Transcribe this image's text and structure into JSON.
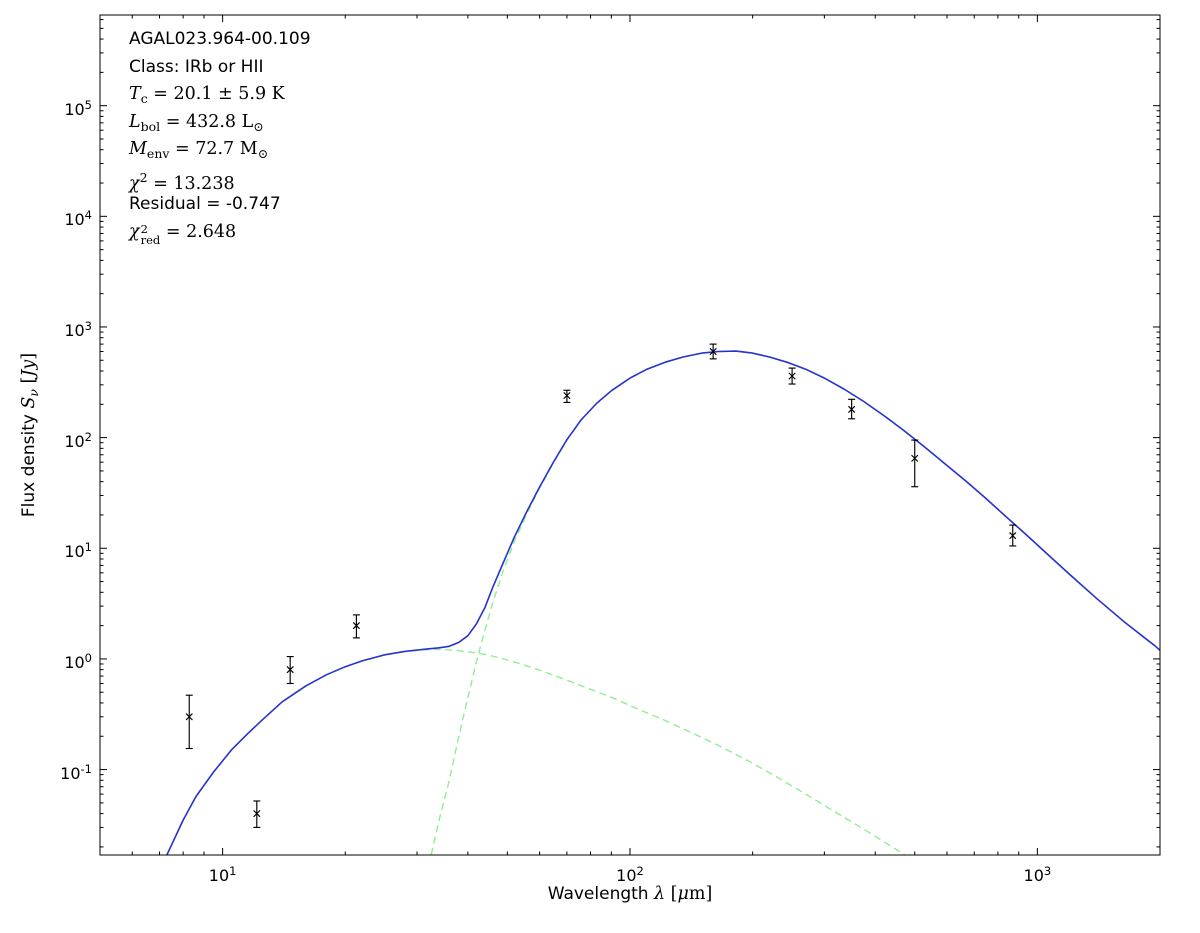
{
  "figure": {
    "background": "#ffffff",
    "frame_color": "#000000",
    "tick_color": "#000000",
    "annotation_lines": [
      {
        "tokens": [
          {
            "s": "plain",
            "t": "AGAL023.964-00.109"
          }
        ]
      },
      {
        "tokens": [
          {
            "s": "plain",
            "t": "Class: IRb or HII"
          }
        ]
      },
      {
        "tokens": [
          {
            "s": "var",
            "t": "T"
          },
          {
            "s": "sub",
            "t": "c"
          },
          {
            "s": "rm",
            "t": " = 20.1 ± 5.9 K"
          }
        ]
      },
      {
        "tokens": [
          {
            "s": "var",
            "t": "L"
          },
          {
            "s": "sub",
            "t": "bol"
          },
          {
            "s": "rm",
            "t": " = 432.8 L"
          },
          {
            "s": "sub",
            "t": "⊙"
          }
        ]
      },
      {
        "tokens": [
          {
            "s": "var",
            "t": "M"
          },
          {
            "s": "sub",
            "t": "env"
          },
          {
            "s": "rm",
            "t": " = 72.7 M"
          },
          {
            "s": "sub",
            "t": "⊙"
          }
        ]
      },
      {
        "tokens": [
          {
            "s": "var",
            "t": "χ"
          },
          {
            "s": "sup",
            "t": "2"
          },
          {
            "s": "rm",
            "t": " = 13.238"
          }
        ]
      },
      {
        "tokens": [
          {
            "s": "plain",
            "t": "Residual = -0.747"
          }
        ]
      },
      {
        "tokens": [
          {
            "s": "var",
            "t": "χ"
          },
          {
            "s": "stack",
            "sup": "2",
            "sub": "red"
          },
          {
            "s": "rm",
            "t": " = 2.648"
          }
        ]
      }
    ],
    "x_axis": {
      "label_tokens": [
        {
          "s": "plain",
          "t": "Wavelength "
        },
        {
          "s": "var",
          "t": "λ"
        },
        {
          "s": "rm",
          "t": " ["
        },
        {
          "s": "var",
          "t": "μ"
        },
        {
          "s": "rm",
          "t": "m]"
        }
      ],
      "tick_labels": [
        {
          "v": 10,
          "base": "10",
          "exp": "1"
        },
        {
          "v": 100,
          "base": "10",
          "exp": "2"
        },
        {
          "v": 1000,
          "base": "10",
          "exp": "3"
        }
      ]
    },
    "y_axis": {
      "label_tokens": [
        {
          "s": "plain",
          "t": "Flux density "
        },
        {
          "s": "var",
          "t": "S"
        },
        {
          "s": "subi",
          "t": "ν"
        },
        {
          "s": "rm",
          "t": " ["
        },
        {
          "s": "var",
          "t": "Jy"
        },
        {
          "s": "rm",
          "t": "]"
        }
      ],
      "tick_labels": [
        {
          "v": 100000,
          "base": "10",
          "exp": "5"
        },
        {
          "v": 10000,
          "base": "10",
          "exp": "4"
        },
        {
          "v": 1000,
          "base": "10",
          "exp": "3"
        },
        {
          "v": 100,
          "base": "10",
          "exp": "2"
        },
        {
          "v": 10,
          "base": "10",
          "exp": "1"
        },
        {
          "v": 1,
          "base": "10",
          "exp": "0"
        },
        {
          "v": 0.1,
          "base": "10",
          "exp": "-1"
        }
      ]
    }
  },
  "chart_data": {
    "type": "line",
    "title": "",
    "xlabel": "Wavelength λ [μm]",
    "ylabel": "Flux density S_ν [Jy]",
    "xscale": "log",
    "yscale": "log",
    "xlim": [
      5,
      2000
    ],
    "ylim": [
      0.0169,
      660000
    ],
    "grid": false,
    "legend": null,
    "annotations": [
      "AGAL023.964-00.109",
      "Class: IRb or HII",
      "T_c = 20.1 ± 5.9 K",
      "L_bol = 432.8 L⊙",
      "M_env = 72.7 M⊙",
      "χ² = 13.238",
      "Residual = -0.747",
      "χ²_red = 2.648"
    ],
    "series": [
      {
        "name": "warm-component",
        "color": "#90ee90",
        "style": "dashed",
        "width": 1.4,
        "points": [
          [
            7.3,
            0.017
          ],
          [
            8,
            0.035
          ],
          [
            8.6,
            0.057
          ],
          [
            9.5,
            0.095
          ],
          [
            10.5,
            0.15
          ],
          [
            11.5,
            0.21
          ],
          [
            12.5,
            0.28
          ],
          [
            14,
            0.41
          ],
          [
            16,
            0.57
          ],
          [
            18,
            0.72
          ],
          [
            20,
            0.85
          ],
          [
            22,
            0.96
          ],
          [
            25,
            1.09
          ],
          [
            28,
            1.17
          ],
          [
            31,
            1.21
          ],
          [
            34,
            1.22
          ],
          [
            37,
            1.2
          ],
          [
            40,
            1.16
          ],
          [
            44,
            1.1
          ],
          [
            48,
            1.02
          ],
          [
            53,
            0.92
          ],
          [
            60,
            0.79
          ],
          [
            68,
            0.67
          ],
          [
            78,
            0.55
          ],
          [
            90,
            0.45
          ],
          [
            105,
            0.35
          ],
          [
            120,
            0.285
          ],
          [
            140,
            0.22
          ],
          [
            165,
            0.165
          ],
          [
            195,
            0.12
          ],
          [
            230,
            0.085
          ],
          [
            270,
            0.06
          ],
          [
            320,
            0.041
          ],
          [
            380,
            0.028
          ],
          [
            450,
            0.019
          ],
          [
            520,
            0.0135
          ]
        ]
      },
      {
        "name": "cold-component",
        "color": "#90ee90",
        "style": "dashed",
        "width": 1.4,
        "points": [
          [
            32.5,
            0.017
          ],
          [
            34,
            0.035
          ],
          [
            36,
            0.08
          ],
          [
            38,
            0.2
          ],
          [
            40,
            0.45
          ],
          [
            42,
            0.95
          ],
          [
            44,
            1.8
          ],
          [
            46,
            3.2
          ],
          [
            49,
            6.5
          ],
          [
            52,
            11.5
          ],
          [
            56,
            21
          ],
          [
            60,
            35
          ],
          [
            65,
            60
          ],
          [
            70,
            95
          ],
          [
            76,
            145
          ],
          [
            83,
            205
          ],
          [
            90,
            265
          ],
          [
            100,
            345
          ],
          [
            110,
            415
          ],
          [
            122,
            480
          ],
          [
            135,
            535
          ],
          [
            150,
            580
          ],
          [
            165,
            600
          ],
          [
            182,
            605
          ],
          [
            200,
            580
          ],
          [
            220,
            535
          ],
          [
            245,
            475
          ],
          [
            270,
            415
          ],
          [
            300,
            345
          ],
          [
            335,
            275
          ],
          [
            375,
            212
          ],
          [
            420,
            158
          ],
          [
            470,
            116
          ],
          [
            525,
            84
          ],
          [
            590,
            59
          ],
          [
            665,
            41
          ],
          [
            745,
            28.5
          ],
          [
            835,
            19.5
          ],
          [
            940,
            13.2
          ],
          [
            1060,
            8.8
          ],
          [
            1200,
            5.8
          ],
          [
            1400,
            3.5
          ],
          [
            1650,
            2.1
          ],
          [
            1950,
            1.3
          ],
          [
            2050,
            1.1
          ]
        ]
      },
      {
        "name": "model-total",
        "color": "#2633cf",
        "style": "solid",
        "width": 1.6,
        "points": [
          [
            7.3,
            0.017
          ],
          [
            8,
            0.035
          ],
          [
            8.6,
            0.057
          ],
          [
            9.5,
            0.095
          ],
          [
            10.5,
            0.15
          ],
          [
            11.5,
            0.21
          ],
          [
            12.5,
            0.28
          ],
          [
            14,
            0.41
          ],
          [
            16,
            0.57
          ],
          [
            18,
            0.72
          ],
          [
            20,
            0.85
          ],
          [
            22,
            0.96
          ],
          [
            25,
            1.09
          ],
          [
            28,
            1.17
          ],
          [
            31,
            1.22
          ],
          [
            34,
            1.26
          ],
          [
            36,
            1.3
          ],
          [
            38,
            1.41
          ],
          [
            40,
            1.62
          ],
          [
            42,
            2.08
          ],
          [
            44,
            2.9
          ],
          [
            46,
            4.4
          ],
          [
            49,
            7.6
          ],
          [
            52,
            12.6
          ],
          [
            56,
            22
          ],
          [
            60,
            35.8
          ],
          [
            65,
            60.9
          ],
          [
            70,
            95.8
          ],
          [
            76,
            145.7
          ],
          [
            83,
            205.6
          ],
          [
            90,
            265.5
          ],
          [
            100,
            345.4
          ],
          [
            110,
            415.3
          ],
          [
            122,
            480.3
          ],
          [
            135,
            535.2
          ],
          [
            150,
            580.2
          ],
          [
            165,
            600.2
          ],
          [
            182,
            605.1
          ],
          [
            200,
            580.1
          ],
          [
            220,
            535.1
          ],
          [
            245,
            475.1
          ],
          [
            270,
            415.1
          ],
          [
            300,
            345
          ],
          [
            335,
            275
          ],
          [
            375,
            212
          ],
          [
            420,
            158
          ],
          [
            470,
            116
          ],
          [
            525,
            84
          ],
          [
            590,
            59
          ],
          [
            665,
            41
          ],
          [
            745,
            28.5
          ],
          [
            835,
            19.5
          ],
          [
            940,
            13.2
          ],
          [
            1060,
            8.8
          ],
          [
            1200,
            5.8
          ],
          [
            1400,
            3.5
          ],
          [
            1650,
            2.1
          ],
          [
            1950,
            1.3
          ],
          [
            2050,
            1.1
          ]
        ]
      }
    ],
    "data_points": {
      "marker": "x",
      "color": "#000000",
      "points": [
        {
          "x": 8.28,
          "y": 0.3,
          "ylo": 0.155,
          "yhi": 0.47
        },
        {
          "x": 12.13,
          "y": 0.04,
          "ylo": 0.03,
          "yhi": 0.052
        },
        {
          "x": 14.65,
          "y": 0.8,
          "ylo": 0.6,
          "yhi": 1.05
        },
        {
          "x": 21.3,
          "y": 2.0,
          "ylo": 1.55,
          "yhi": 2.5
        },
        {
          "x": 70,
          "y": 240,
          "ylo": 208,
          "yhi": 268
        },
        {
          "x": 160,
          "y": 600,
          "ylo": 515,
          "yhi": 700
        },
        {
          "x": 250,
          "y": 360,
          "ylo": 305,
          "yhi": 425
        },
        {
          "x": 350,
          "y": 180,
          "ylo": 148,
          "yhi": 222
        },
        {
          "x": 500,
          "y": 65,
          "ylo": 36,
          "yhi": 95
        },
        {
          "x": 870,
          "y": 13,
          "ylo": 10.5,
          "yhi": 16.2
        }
      ]
    }
  }
}
